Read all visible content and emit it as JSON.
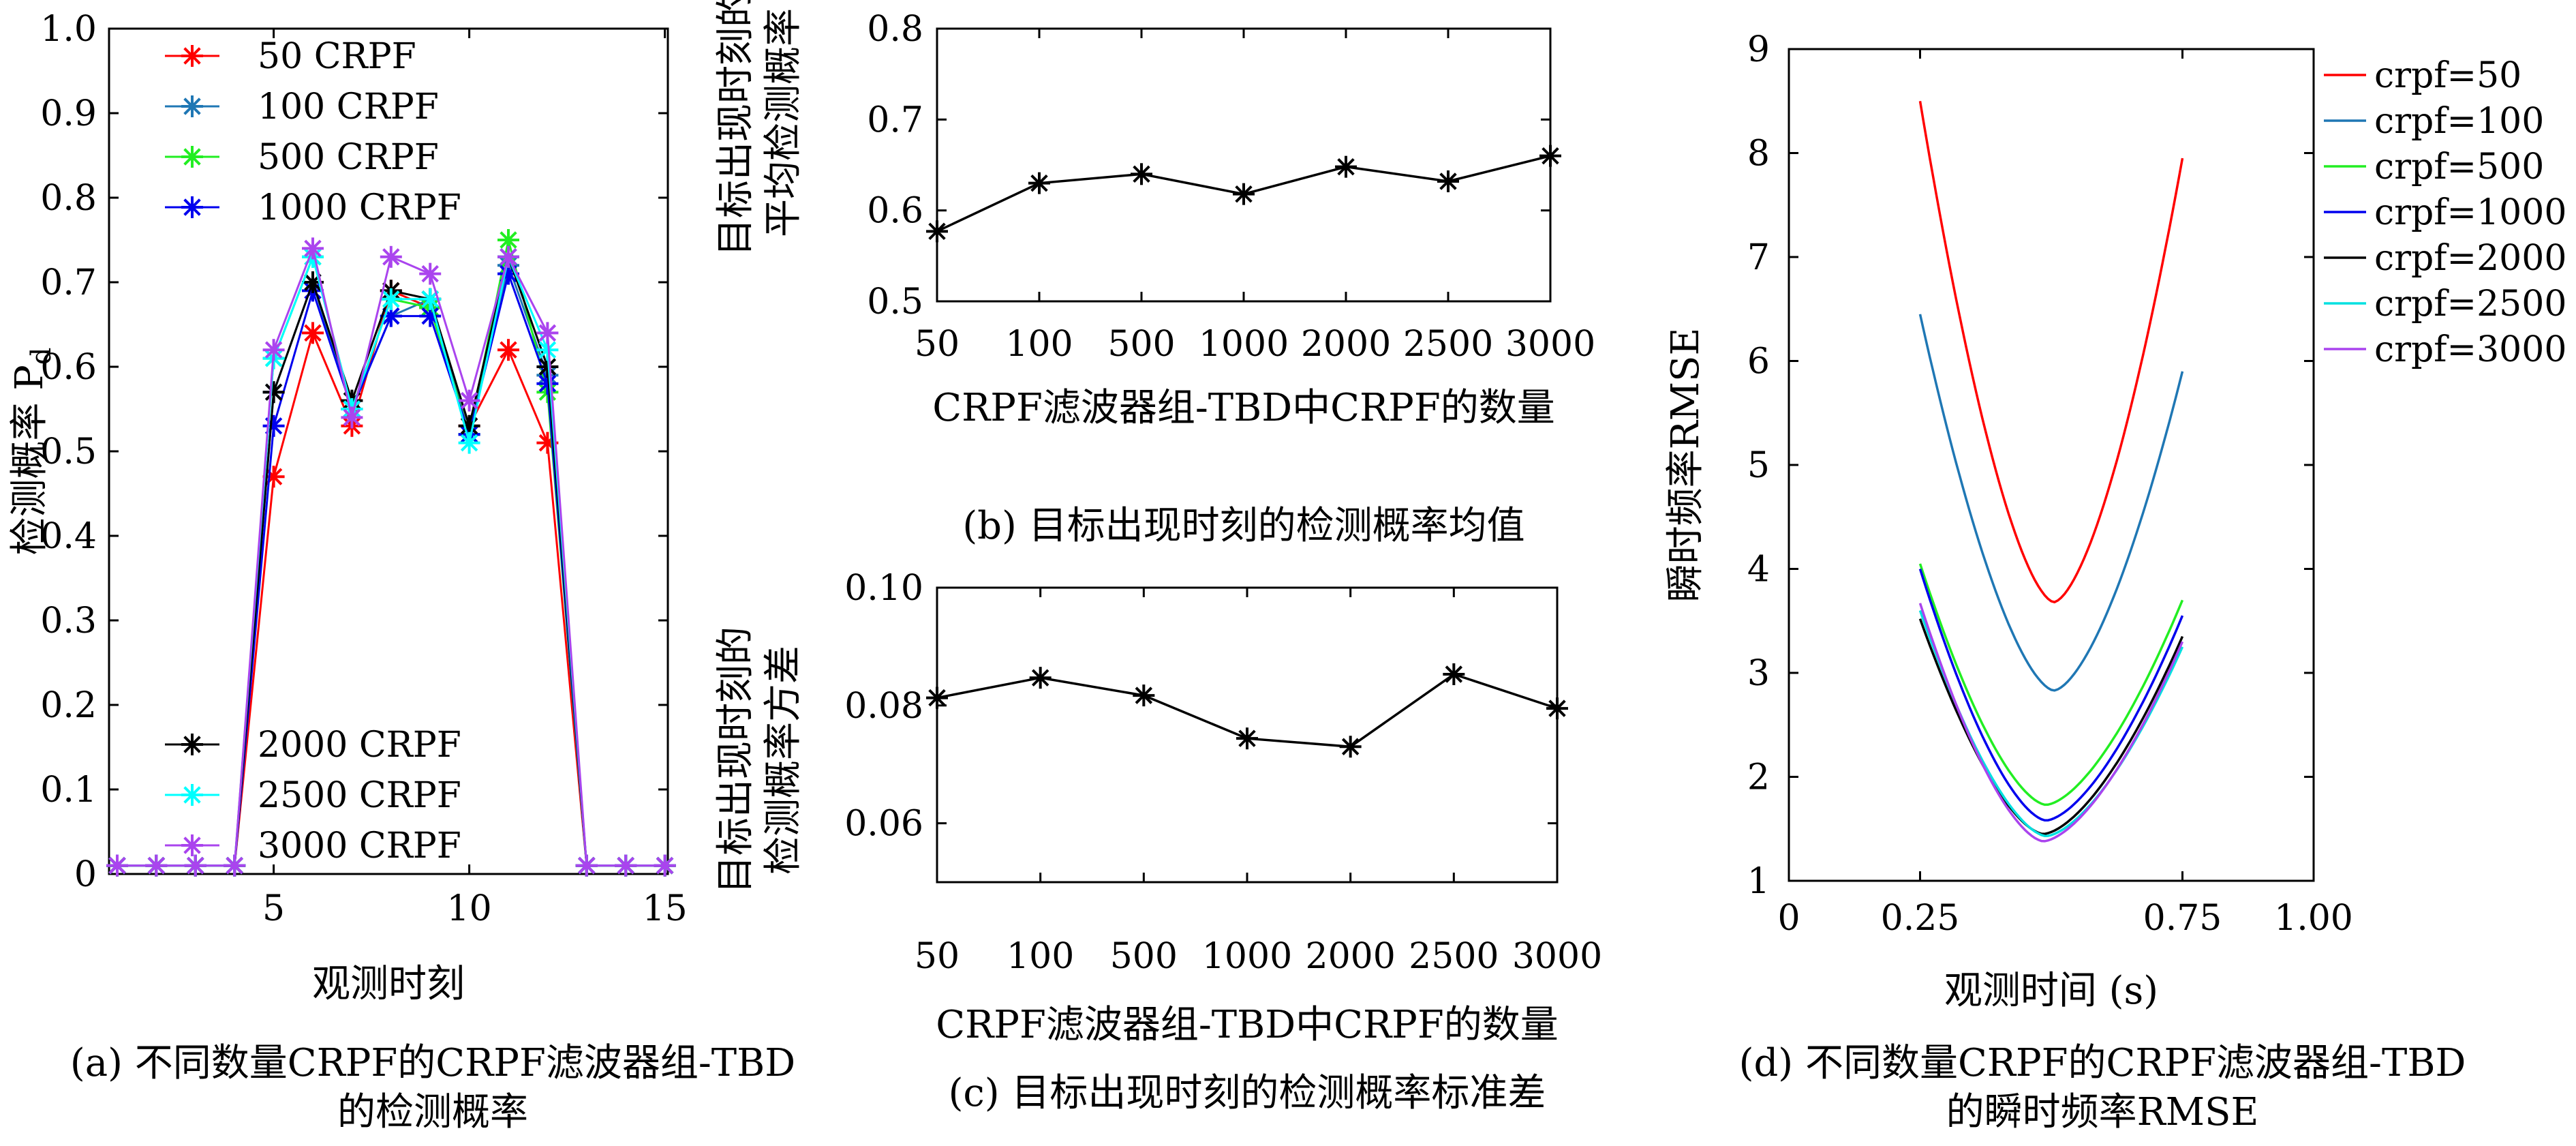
{
  "chart_data": [
    {
      "type": "line",
      "caption_lines": [
        "(a) 不同数量CRPF的CRPF滤波器组-TBD",
        "的检测概率"
      ],
      "xlabel": "观测时刻",
      "ylabel": "检测概率 P",
      "ylabel_subscript": "d",
      "xlim": [
        1,
        15
      ],
      "ylim": [
        0,
        1.0
      ],
      "xticks": [
        "5",
        "10",
        "15"
      ],
      "xtick_values": [
        5,
        10,
        15
      ],
      "yticks": [
        "0",
        "0.1",
        "0.2",
        "0.3",
        "0.4",
        "0.5",
        "0.6",
        "0.7",
        "0.8",
        "0.9",
        "1.0"
      ],
      "ytick_values": [
        0,
        0.1,
        0.2,
        0.3,
        0.4,
        0.5,
        0.6,
        0.7,
        0.8,
        0.9,
        1.0
      ],
      "grid": false,
      "legend_upper": "top-left",
      "legend_lower": "bottom-left",
      "x": [
        1,
        2,
        3,
        4,
        5,
        6,
        7,
        8,
        9,
        10,
        11,
        12,
        13,
        14,
        15
      ],
      "series": [
        {
          "name": "50 CRPF",
          "color": "#ff0000",
          "legend_group": "upper",
          "values": [
            0.01,
            0.01,
            0.01,
            0.01,
            0.47,
            0.64,
            0.53,
            0.69,
            0.67,
            0.53,
            0.62,
            0.51,
            0.01,
            0.01,
            0.01
          ]
        },
        {
          "name": "100 CRPF",
          "color": "#1f77b4",
          "legend_group": "upper",
          "values": [
            0.01,
            0.01,
            0.01,
            0.01,
            0.57,
            0.7,
            0.55,
            0.66,
            0.68,
            0.52,
            0.72,
            0.59,
            0.01,
            0.01,
            0.01
          ]
        },
        {
          "name": "500 CRPF",
          "color": "#22ee22",
          "legend_group": "upper",
          "values": [
            0.01,
            0.01,
            0.01,
            0.01,
            0.61,
            0.73,
            0.55,
            0.68,
            0.67,
            0.52,
            0.75,
            0.57,
            0.01,
            0.01,
            0.01
          ]
        },
        {
          "name": "1000 CRPF",
          "color": "#0000ee",
          "legend_group": "upper",
          "values": [
            0.01,
            0.01,
            0.01,
            0.01,
            0.53,
            0.69,
            0.55,
            0.66,
            0.66,
            0.52,
            0.71,
            0.58,
            0.01,
            0.01,
            0.01
          ]
        },
        {
          "name": "2000 CRPF",
          "color": "#000000",
          "legend_group": "lower",
          "values": [
            0.01,
            0.01,
            0.01,
            0.01,
            0.57,
            0.7,
            0.56,
            0.69,
            0.68,
            0.53,
            0.73,
            0.6,
            0.01,
            0.01,
            0.01
          ]
        },
        {
          "name": "2500 CRPF",
          "color": "#00ffff",
          "legend_group": "lower",
          "values": [
            0.01,
            0.01,
            0.01,
            0.01,
            0.61,
            0.73,
            0.55,
            0.68,
            0.68,
            0.51,
            0.73,
            0.62,
            0.01,
            0.01,
            0.01
          ]
        },
        {
          "name": "3000 CRPF",
          "color": "#aa44ee",
          "legend_group": "lower",
          "values": [
            0.01,
            0.01,
            0.01,
            0.01,
            0.62,
            0.74,
            0.54,
            0.73,
            0.71,
            0.56,
            0.73,
            0.64,
            0.01,
            0.01,
            0.01
          ]
        }
      ]
    },
    {
      "type": "line",
      "caption": "(b) 目标出现时刻的检测概率均值",
      "xlabel": "CRPF滤波器组-TBD中CRPF的数量",
      "ylabel_lines": [
        "目标出现时刻的",
        "平均检测概率"
      ],
      "categories": [
        "50",
        "100",
        "500",
        "1000",
        "2000",
        "2500",
        "3000"
      ],
      "yticks": [
        "0.5",
        "0.6",
        "0.7",
        "0.8"
      ],
      "ylim": [
        0.5,
        0.8
      ],
      "grid": false,
      "series": [
        {
          "color": "#000000",
          "values": [
            0.577,
            0.63,
            0.64,
            0.618,
            0.648,
            0.632,
            0.66
          ]
        }
      ]
    },
    {
      "type": "line",
      "caption": "(c) 目标出现时刻的检测概率标准差",
      "xlabel": "CRPF滤波器组-TBD中CRPF的数量",
      "ylabel_lines": [
        "目标出现时刻的",
        "检测概率方差"
      ],
      "categories": [
        "50",
        "100",
        "500",
        "1000",
        "2000",
        "2500",
        "3000"
      ],
      "yticks": [
        "0.06",
        "0.08",
        "0.10"
      ],
      "ytick_values": [
        0.06,
        0.08,
        0.1
      ],
      "ylim": [
        0.05,
        0.1
      ],
      "grid": false,
      "series": [
        {
          "color": "#000000",
          "values": [
            0.0813,
            0.0847,
            0.0817,
            0.0744,
            0.073,
            0.0853,
            0.0795
          ]
        }
      ]
    },
    {
      "type": "line",
      "caption_lines": [
        "(d) 不同数量CRPF的CRPF滤波器组-TBD",
        "的瞬时频率RMSE"
      ],
      "xlabel": "观测时间 (s)",
      "ylabel": "瞬时频率RMSE",
      "xlim": [
        0,
        1.0
      ],
      "ylim": [
        1,
        9
      ],
      "xticks": [
        "0",
        "0.25",
        "0.75",
        "1.00"
      ],
      "xtick_values": [
        0,
        0.25,
        0.75,
        1.0
      ],
      "yticks": [
        "1",
        "2",
        "3",
        "4",
        "5",
        "6",
        "7",
        "8",
        "9"
      ],
      "ytick_values": [
        1,
        2,
        3,
        4,
        5,
        6,
        7,
        8,
        9
      ],
      "grid": false,
      "legend": "top-right outside",
      "series": [
        {
          "name": "crpf=50",
          "color": "#ff0000",
          "x_range": [
            0.25,
            0.75
          ],
          "x_min": 0.505,
          "minimum": 3.68,
          "start": 8.5,
          "end": 7.95
        },
        {
          "name": "crpf=100",
          "color": "#1f77b4",
          "x_range": [
            0.25,
            0.75
          ],
          "x_min": 0.505,
          "minimum": 2.83,
          "start": 6.45,
          "end": 5.9
        },
        {
          "name": "crpf=500",
          "color": "#22ee22",
          "x_range": [
            0.25,
            0.75
          ],
          "x_min": 0.49,
          "minimum": 1.73,
          "start": 4.05,
          "end": 3.7
        },
        {
          "name": "crpf=1000",
          "color": "#0000ee",
          "x_range": [
            0.25,
            0.75
          ],
          "x_min": 0.49,
          "minimum": 1.58,
          "start": 4.0,
          "end": 3.55
        },
        {
          "name": "crpf=2000",
          "color": "#000000",
          "x_range": [
            0.25,
            0.75
          ],
          "x_min": 0.485,
          "minimum": 1.45,
          "start": 3.52,
          "end": 3.35
        },
        {
          "name": "crpf=2500",
          "color": "#00e0e0",
          "x_range": [
            0.25,
            0.75
          ],
          "x_min": 0.49,
          "minimum": 1.43,
          "start": 3.6,
          "end": 3.25
        },
        {
          "name": "crpf=3000",
          "color": "#aa44ee",
          "x_range": [
            0.25,
            0.75
          ],
          "x_min": 0.485,
          "minimum": 1.38,
          "start": 3.67,
          "end": 3.3
        }
      ]
    }
  ]
}
